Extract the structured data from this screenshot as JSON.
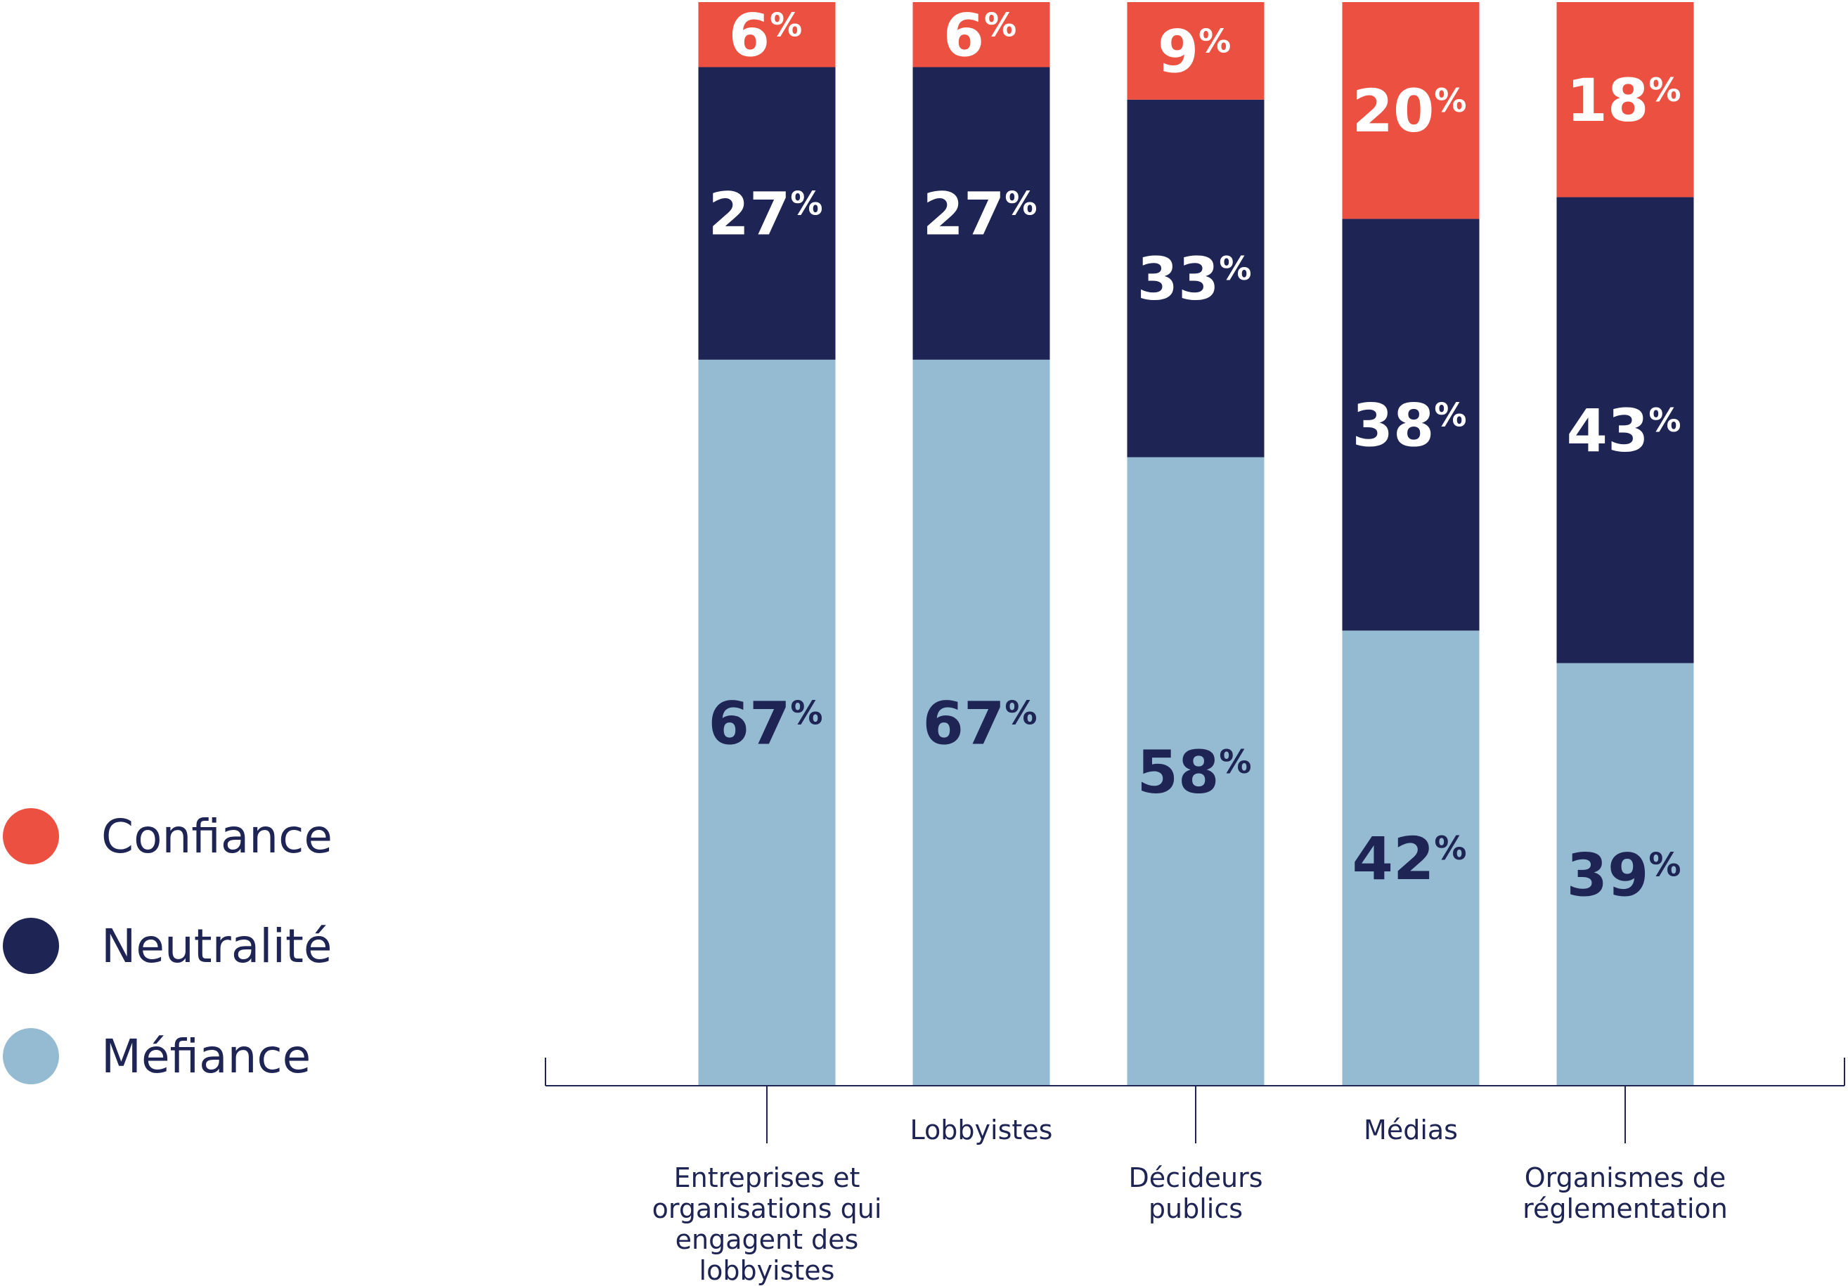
{
  "chart_data": {
    "type": "bar",
    "stacked": true,
    "categories": [
      "Entreprises et organisations qui engagent des lobbyistes",
      "Lobbyistes",
      "Décideurs publics",
      "Médias",
      "Organismes de réglementation"
    ],
    "category_lines": [
      [
        "Entreprises et",
        "organisations qui",
        "engagent des",
        "lobbyistes"
      ],
      [
        "Lobbyistes"
      ],
      [
        "Décideurs",
        "publics"
      ],
      [
        "Médias"
      ],
      [
        "Organismes de",
        "réglementation"
      ]
    ],
    "series": [
      {
        "name": "Méfiance",
        "color": "#95bbd2",
        "label_color": "#1e2453",
        "values": [
          67,
          67,
          58,
          42,
          39
        ]
      },
      {
        "name": "Neutralité",
        "color": "#1e2453",
        "label_color": "#ffffff",
        "values": [
          27,
          27,
          33,
          38,
          43
        ]
      },
      {
        "name": "Confiance",
        "color": "#ec5040",
        "label_color": "#ffffff",
        "values": [
          6,
          6,
          9,
          20,
          18
        ]
      }
    ],
    "value_suffix": "%",
    "ylim": [
      0,
      100
    ],
    "grid": false,
    "legend_position": "left",
    "legend_order": [
      "Confiance",
      "Neutralité",
      "Méfiance"
    ]
  }
}
